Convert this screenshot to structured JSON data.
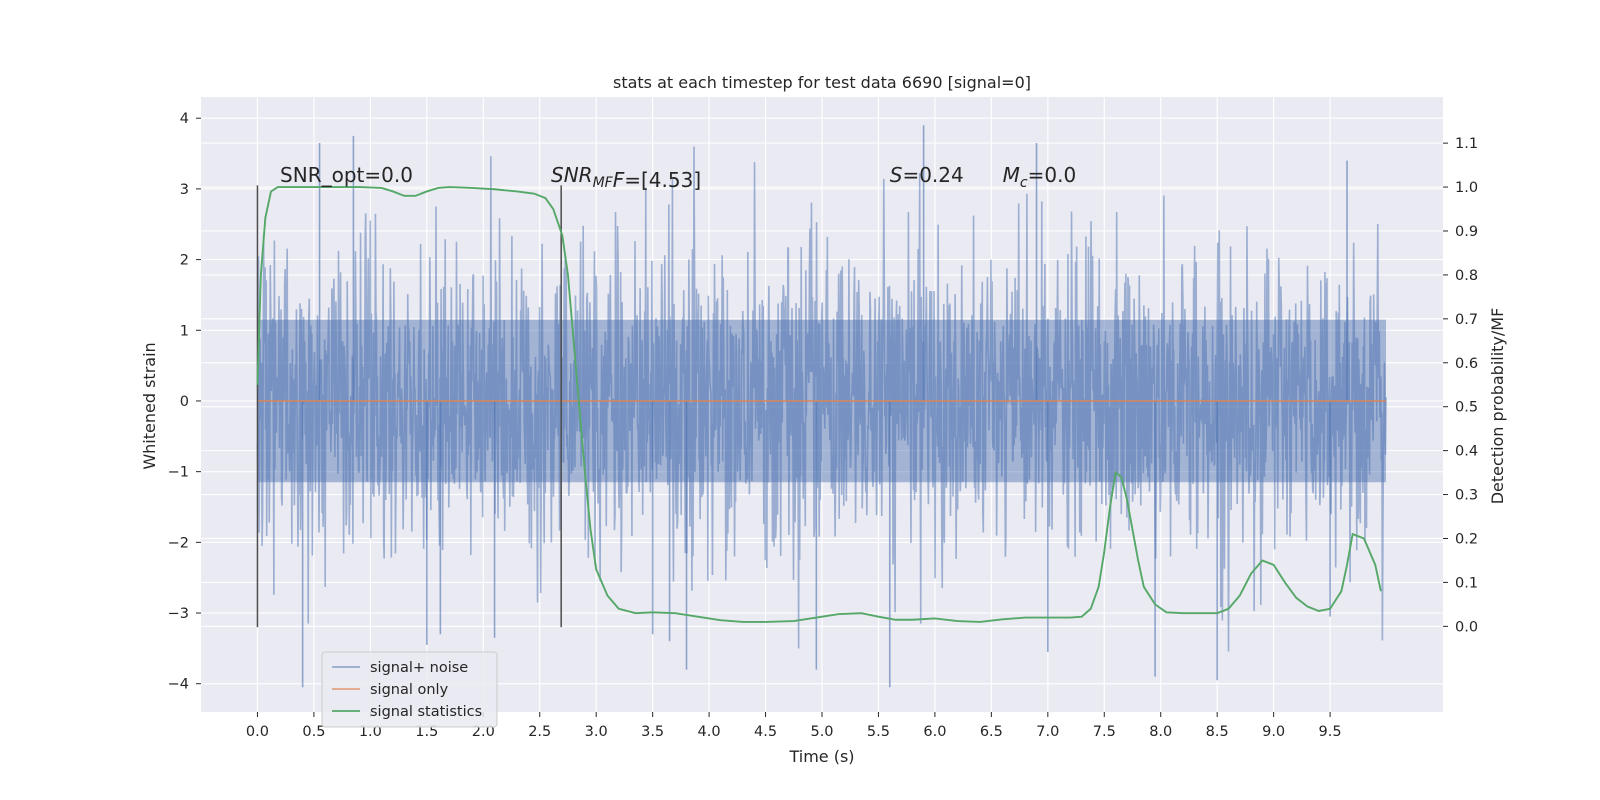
{
  "chart_data": {
    "type": "line",
    "title": "stats at each timestep for test data 6690 [signal=0]",
    "xlabel": "Time (s)",
    "ylabel": "Whitened strain",
    "y2label": "Detection probability/MF",
    "xlim": [
      -0.5,
      10.5
    ],
    "ylim": [
      -4.4,
      4.3
    ],
    "y2lim": [
      -0.195,
      1.205
    ],
    "x_ticks": [
      0.0,
      0.5,
      1.0,
      1.5,
      2.0,
      2.5,
      3.0,
      3.5,
      4.0,
      4.5,
      5.0,
      5.5,
      6.0,
      6.5,
      7.0,
      7.5,
      8.0,
      8.5,
      9.0,
      9.5
    ],
    "x_tick_labels": [
      "0.0",
      "0.5",
      "1.0",
      "1.5",
      "2.0",
      "2.5",
      "3.0",
      "3.5",
      "4.0",
      "4.5",
      "5.0",
      "5.5",
      "6.0",
      "6.5",
      "7.0",
      "7.5",
      "8.0",
      "8.5",
      "9.0",
      "9.5"
    ],
    "y_ticks": [
      4,
      3,
      2,
      1,
      0,
      -1,
      -2,
      -3,
      -4
    ],
    "y_tick_labels": [
      "4",
      "3",
      "2",
      "1",
      "0",
      "−1",
      "−2",
      "−3",
      "−4"
    ],
    "y2_ticks": [
      1.1,
      1.0,
      0.9,
      0.8,
      0.7,
      0.6,
      0.5,
      0.4,
      0.3,
      0.2,
      0.1,
      0.0
    ],
    "y2_tick_labels": [
      "1.1",
      "1.0",
      "0.9",
      "0.8",
      "0.7",
      "0.6",
      "0.5",
      "0.4",
      "0.3",
      "0.2",
      "0.1",
      "0.0"
    ],
    "grid": true,
    "legend_position": "lower-left",
    "annotations": [
      {
        "text": "SNR_opt=0.0",
        "x": 0.2,
        "y": 3.1
      },
      {
        "text": "SNR",
        "sub": "MF",
        "suffix": "F=[4.53]",
        "italic_prefix": true,
        "x": 2.6,
        "y": 3.1
      },
      {
        "text": "S",
        "suffix": "=0.24",
        "x": 5.6,
        "y": 3.1
      },
      {
        "text": "M",
        "sub": "c",
        "suffix": "=0.0",
        "x": 6.6,
        "y": 3.1
      }
    ],
    "vlines": [
      {
        "x": 0.0,
        "ymin": -3.2,
        "ymax": 3.05
      },
      {
        "x": 2.69,
        "ymin": -3.2,
        "ymax": 3.05
      }
    ],
    "series": [
      {
        "name": "signal+ noise",
        "axis": "left",
        "color": "#4c72b0",
        "opacity": 0.5,
        "x_range": [
          0.0,
          9.995
        ],
        "envelope": "dense whitened noise, core band approx ±1.2, spikes up to 3.9 and down to -4.1",
        "spike_peaks": [
          {
            "x": 0.4,
            "y": -4.05
          },
          {
            "x": 0.55,
            "y": 3.65
          },
          {
            "x": 0.85,
            "y": 3.75
          },
          {
            "x": 1.5,
            "y": -3.45
          },
          {
            "x": 1.62,
            "y": -3.3
          },
          {
            "x": 2.1,
            "y": -3.35
          },
          {
            "x": 3.5,
            "y": -3.3
          },
          {
            "x": 3.65,
            "y": -3.4
          },
          {
            "x": 3.8,
            "y": -3.8
          },
          {
            "x": 4.95,
            "y": -3.8
          },
          {
            "x": 5.6,
            "y": -4.05
          },
          {
            "x": 5.9,
            "y": 3.9
          },
          {
            "x": 6.9,
            "y": 3.65
          },
          {
            "x": 7.0,
            "y": -3.55
          },
          {
            "x": 7.95,
            "y": -3.9
          },
          {
            "x": 8.5,
            "y": -3.95
          },
          {
            "x": 9.65,
            "y": 3.4
          },
          {
            "x": 9.5,
            "y": -3.05
          }
        ]
      },
      {
        "name": "signal only",
        "axis": "left",
        "color": "#dd8452",
        "x": [
          0.0,
          9.995
        ],
        "y": [
          0.0,
          0.0
        ]
      },
      {
        "name": "signal statistics",
        "axis": "right",
        "color": "#55a868",
        "x": [
          0.0,
          0.03,
          0.07,
          0.12,
          0.18,
          0.25,
          0.35,
          0.5,
          0.7,
          0.9,
          1.1,
          1.2,
          1.3,
          1.4,
          1.5,
          1.6,
          1.7,
          1.9,
          2.1,
          2.3,
          2.45,
          2.55,
          2.62,
          2.7,
          2.75,
          2.8,
          2.85,
          2.9,
          2.95,
          3.0,
          3.1,
          3.2,
          3.35,
          3.5,
          3.7,
          3.9,
          4.1,
          4.3,
          4.5,
          4.75,
          4.95,
          5.15,
          5.35,
          5.5,
          5.65,
          5.8,
          6.0,
          6.2,
          6.4,
          6.6,
          6.8,
          7.0,
          7.2,
          7.3,
          7.38,
          7.45,
          7.5,
          7.55,
          7.6,
          7.65,
          7.7,
          7.75,
          7.8,
          7.85,
          7.95,
          8.05,
          8.2,
          8.4,
          8.5,
          8.6,
          8.7,
          8.8,
          8.9,
          9.0,
          9.1,
          9.2,
          9.3,
          9.4,
          9.5,
          9.6,
          9.65,
          9.7,
          9.8,
          9.9,
          9.95
        ],
        "y": [
          0.55,
          0.8,
          0.93,
          0.99,
          1.0,
          1.0,
          1.0,
          1.0,
          1.0,
          1.0,
          0.998,
          0.99,
          0.98,
          0.98,
          0.99,
          0.998,
          1.0,
          0.998,
          0.995,
          0.99,
          0.985,
          0.975,
          0.95,
          0.89,
          0.8,
          0.65,
          0.5,
          0.35,
          0.22,
          0.13,
          0.07,
          0.04,
          0.03,
          0.032,
          0.03,
          0.022,
          0.014,
          0.01,
          0.01,
          0.012,
          0.02,
          0.028,
          0.03,
          0.022,
          0.015,
          0.015,
          0.018,
          0.012,
          0.01,
          0.016,
          0.02,
          0.02,
          0.02,
          0.022,
          0.04,
          0.09,
          0.17,
          0.27,
          0.35,
          0.34,
          0.29,
          0.22,
          0.15,
          0.09,
          0.05,
          0.032,
          0.03,
          0.03,
          0.03,
          0.04,
          0.07,
          0.12,
          0.15,
          0.14,
          0.1,
          0.065,
          0.045,
          0.035,
          0.04,
          0.08,
          0.14,
          0.21,
          0.2,
          0.14,
          0.08
        ]
      }
    ]
  }
}
